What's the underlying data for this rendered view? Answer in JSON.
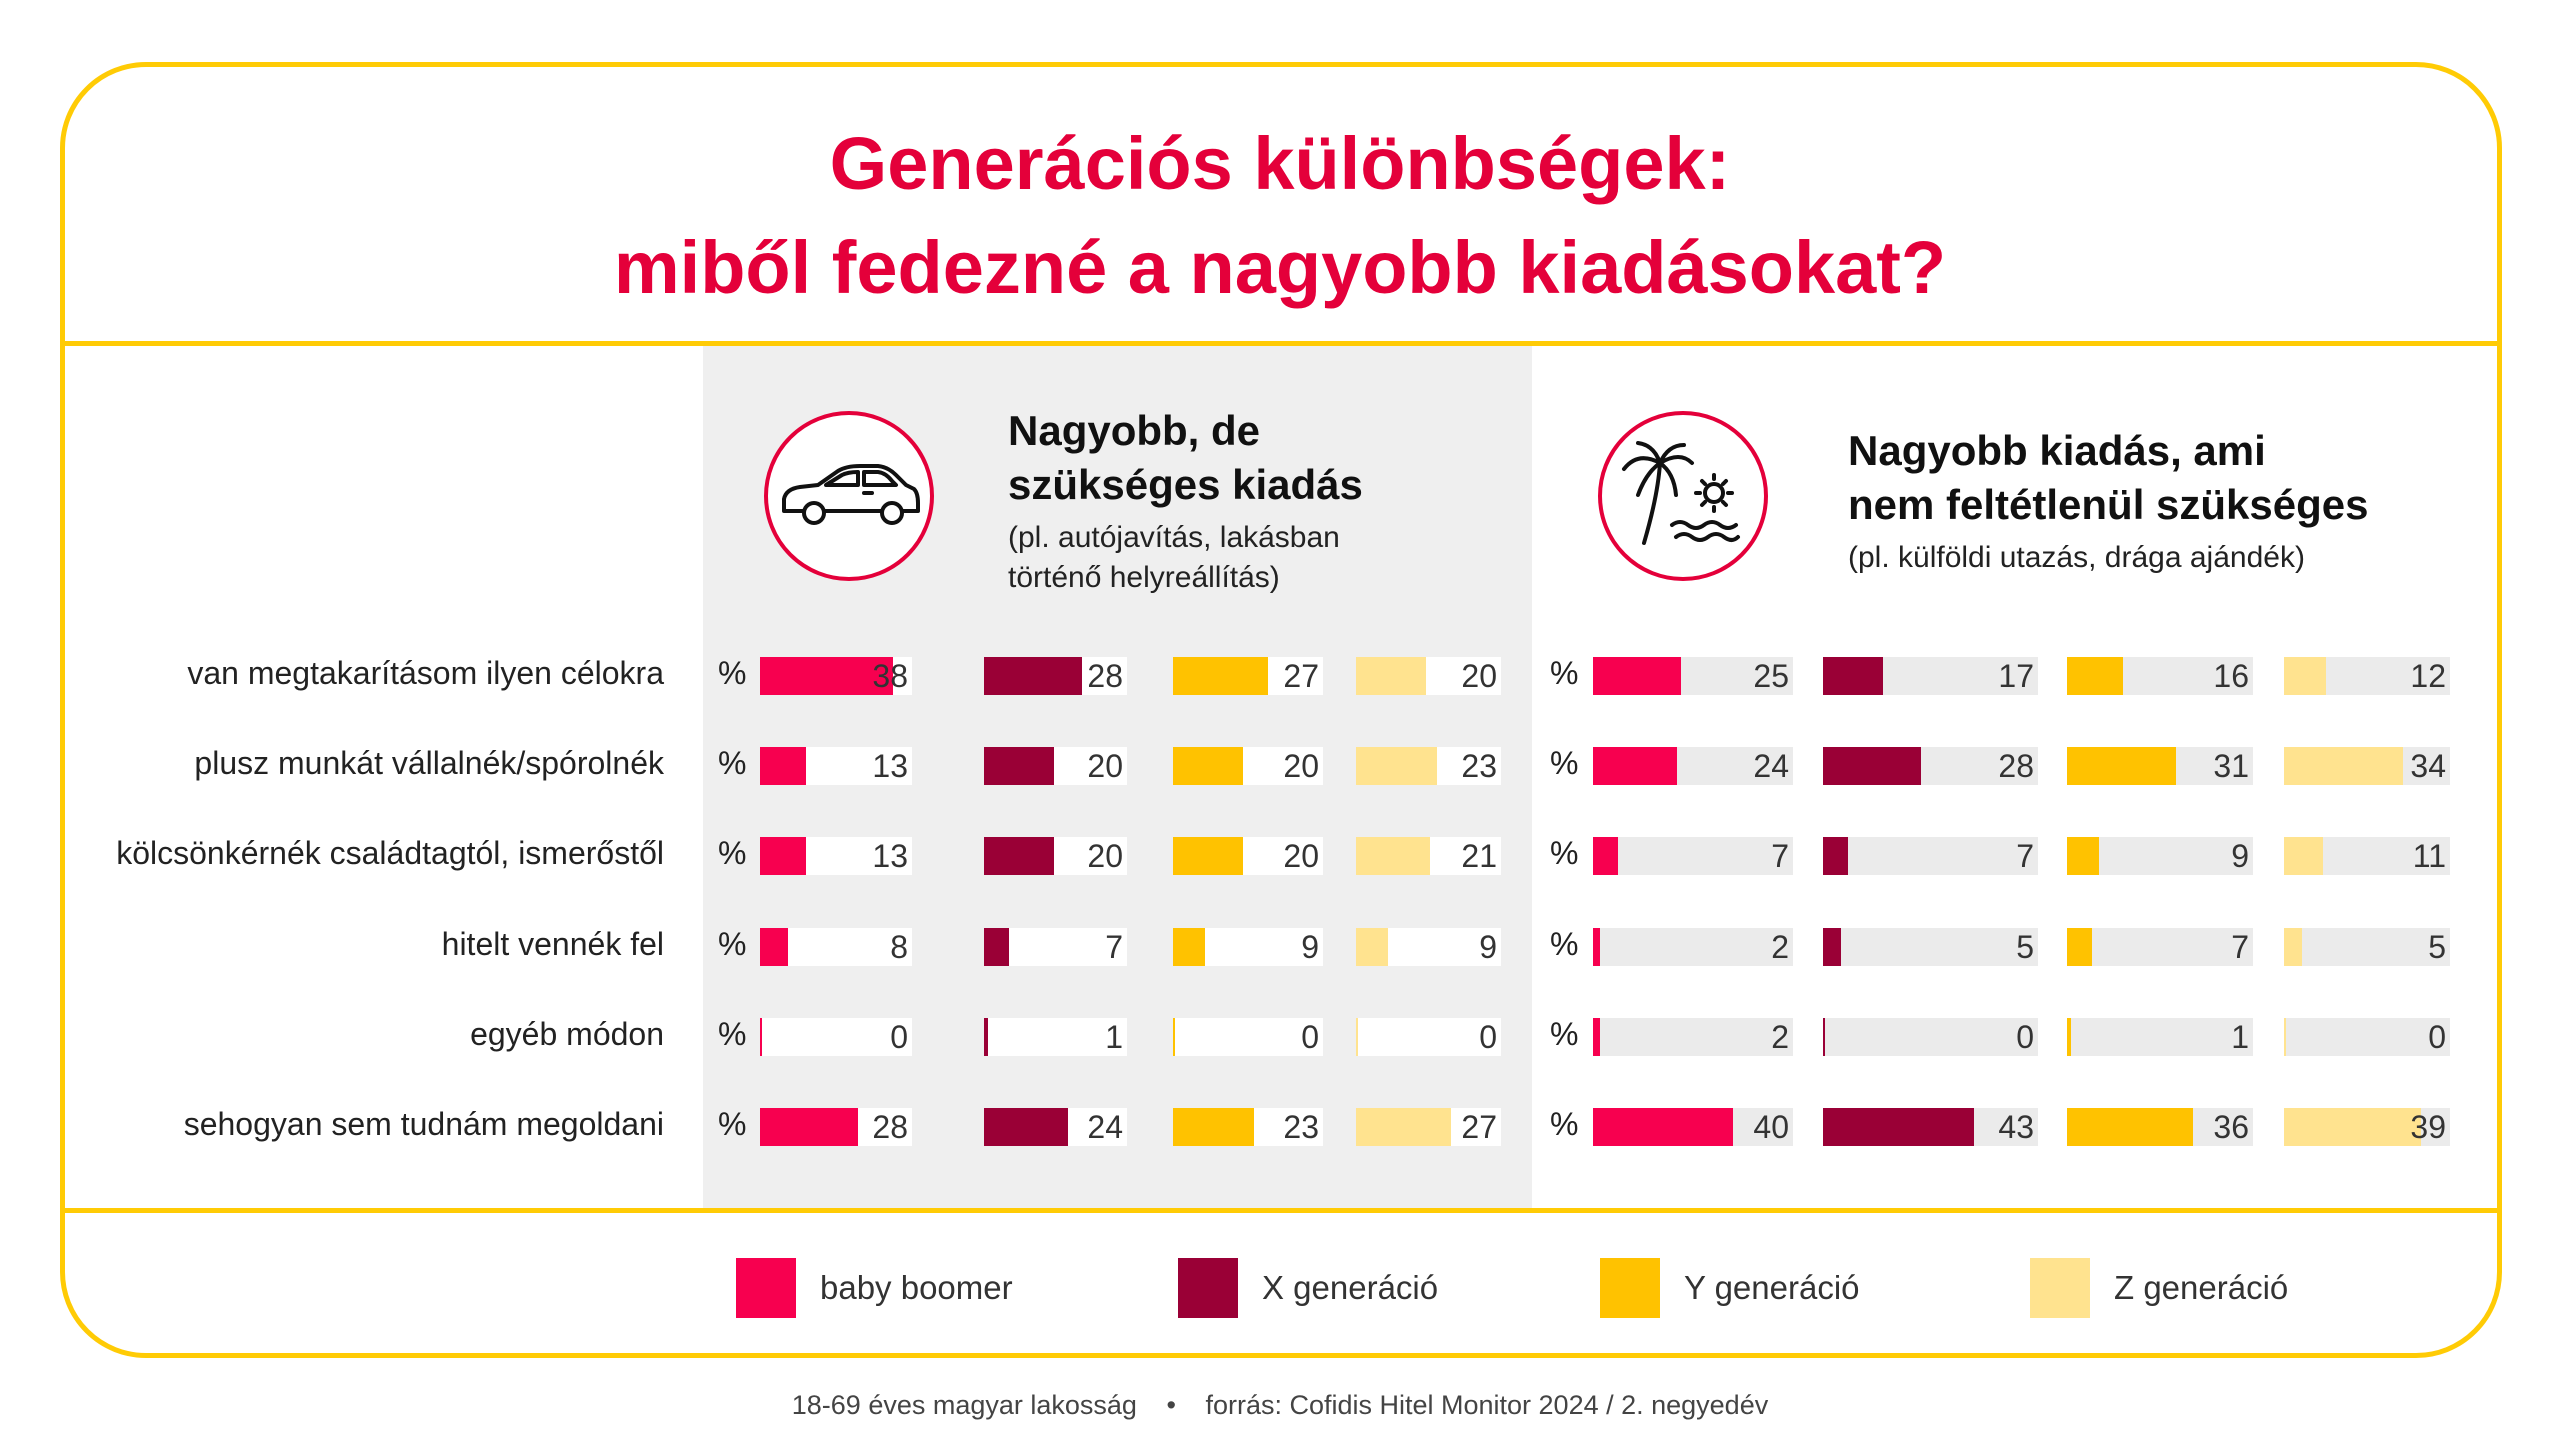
{
  "title_line1": "Generációs különbségek:",
  "title_line2": "miből fedezné a nagyobb kiadásokat?",
  "colors": {
    "accent": "#E4003A",
    "frame": "#FFCB05",
    "panel": "#EFEFEF",
    "track": "#EBEBEB",
    "series": [
      "#F7004F",
      "#9A0036",
      "#FFC200",
      "#FFE38F"
    ]
  },
  "sections": [
    {
      "icon": "car-icon",
      "title_line1": "Nagyobb, de",
      "title_line2": "szükséges kiadás",
      "sub_line1": "(pl. autójavítás, lakásban",
      "sub_line2": "történő helyreállítás)"
    },
    {
      "icon": "palm-beach-icon",
      "title_line1": "Nagyobb kiadás, ami",
      "title_line2": "nem feltétlenül szükséges",
      "sub_line1": "(pl. külföldi utazás, drága ajándék)",
      "sub_line2": ""
    }
  ],
  "percent_sign": "%",
  "legend": [
    "baby boomer",
    "X generáció",
    "Y generáció",
    "Z generáció"
  ],
  "footer_left": "18-69 éves magyar lakosság",
  "footer_dot": "•",
  "footer_right": "forrás: Cofidis Hitel Monitor 2024 / 2. negyedév",
  "chart_data": {
    "type": "bar",
    "unit": "%",
    "categories": [
      "van megtakarításom ilyen célokra",
      "plusz munkát vállalnék/spórolnék",
      "kölcsönkérnék családtagtól, ismerőstől",
      "hitelt vennék fel",
      "egyéb módon",
      "sehogyan sem tudnám megoldani"
    ],
    "series_names": [
      "baby boomer",
      "X generáció",
      "Y generáció",
      "Z generáció"
    ],
    "panels": [
      {
        "name": "Nagyobb, de szükséges kiadás",
        "series": [
          {
            "name": "baby boomer",
            "values": [
              38,
              13,
              13,
              8,
              0,
              28
            ]
          },
          {
            "name": "X generáció",
            "values": [
              28,
              20,
              20,
              7,
              1,
              24
            ]
          },
          {
            "name": "Y generáció",
            "values": [
              27,
              20,
              20,
              9,
              0,
              23
            ]
          },
          {
            "name": "Z generáció",
            "values": [
              20,
              23,
              21,
              9,
              0,
              27
            ]
          }
        ]
      },
      {
        "name": "Nagyobb kiadás, ami nem feltétlenül szükséges",
        "series": [
          {
            "name": "baby boomer",
            "values": [
              25,
              24,
              7,
              2,
              2,
              40
            ]
          },
          {
            "name": "X generáció",
            "values": [
              17,
              28,
              7,
              5,
              0,
              43
            ]
          },
          {
            "name": "Y generáció",
            "values": [
              16,
              31,
              9,
              7,
              1,
              36
            ]
          },
          {
            "name": "Z generáció",
            "values": [
              12,
              34,
              11,
              5,
              0,
              39
            ]
          }
        ]
      }
    ],
    "legend_position": "bottom",
    "grid": false
  }
}
